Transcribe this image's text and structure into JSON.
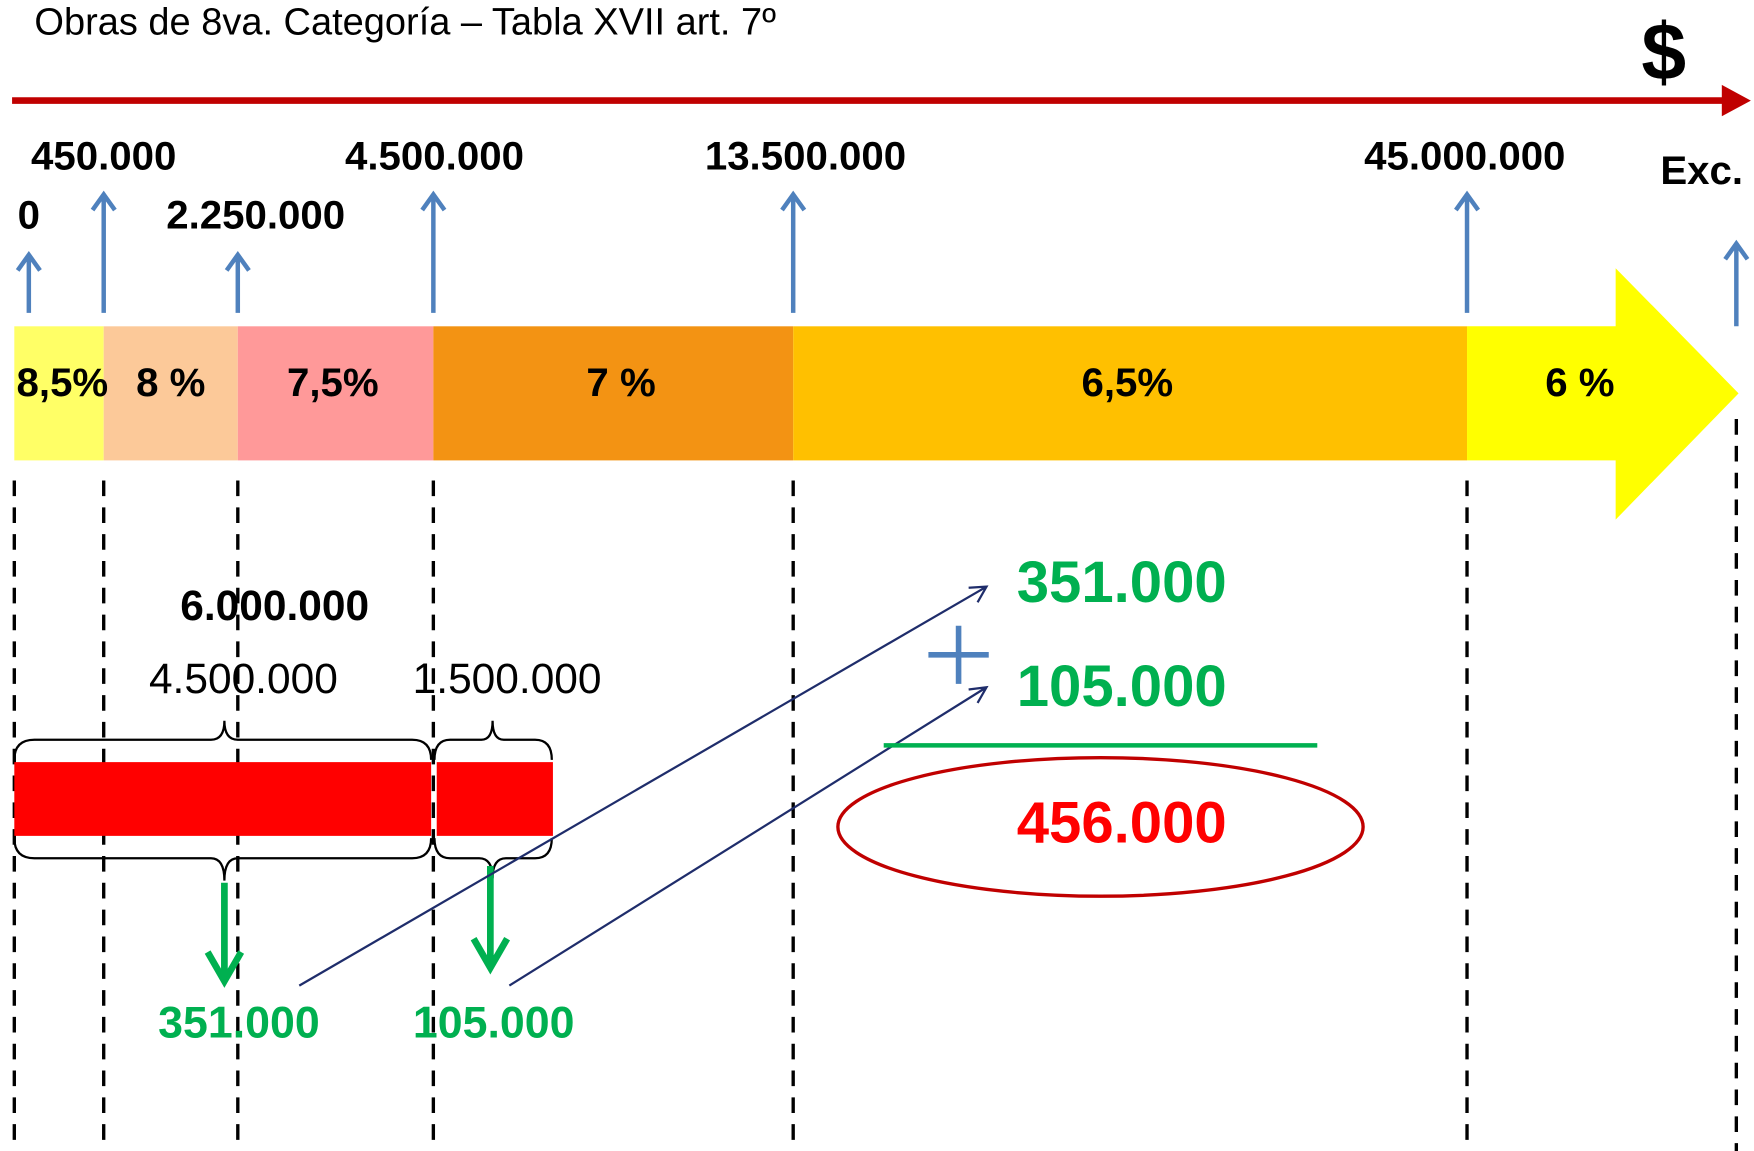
{
  "title": "Obras de 8va. Categoría – Tabla XVII art. 7º",
  "currency": "$",
  "thresholds": [
    "0",
    "450.000",
    "2.250.000",
    "4.500.000",
    "13.500.000",
    "45.000.000",
    "Exc."
  ],
  "rates": [
    "8,5%",
    "8 %",
    "7,5%",
    "7 %",
    "6,5%",
    "6 %"
  ],
  "example": {
    "total": "6.000.000",
    "parts": [
      "4.500.000",
      "1.500.000"
    ],
    "fees": [
      "351.000",
      "105.000"
    ]
  },
  "sum": {
    "terms": [
      "351.000",
      "105.000"
    ],
    "result": "456.000"
  }
}
